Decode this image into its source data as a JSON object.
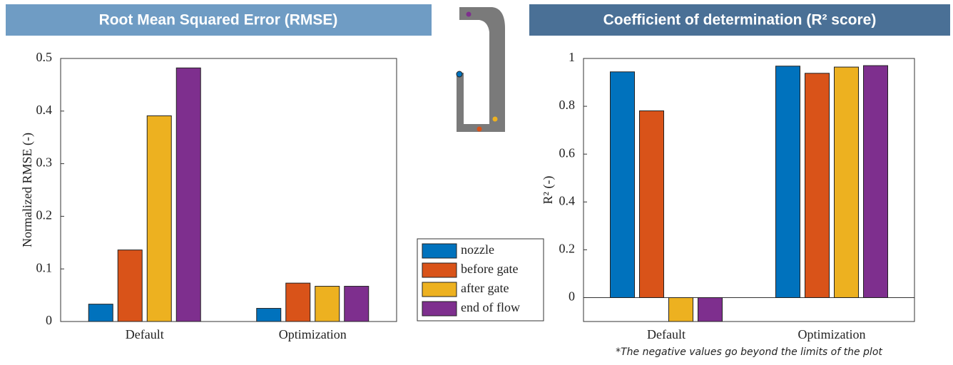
{
  "chart_data": [
    {
      "type": "bar",
      "title": "Root Mean Squared Error (RMSE)",
      "ylabel": "Normalized RMSE (-)",
      "categories": [
        "Default",
        "Optimization"
      ],
      "series": [
        {
          "name": "nozzle",
          "color": "#0072bd",
          "values": [
            0.033,
            0.025
          ]
        },
        {
          "name": "before gate",
          "color": "#d95319",
          "values": [
            0.136,
            0.073
          ]
        },
        {
          "name": "after gate",
          "color": "#edb120",
          "values": [
            0.391,
            0.067
          ]
        },
        {
          "name": "end of flow",
          "color": "#7e2f8e",
          "values": [
            0.482,
            0.067
          ]
        }
      ],
      "ylim": [
        0,
        0.5
      ],
      "yticks": [
        0,
        0.1,
        0.2,
        0.3,
        0.4,
        0.5
      ]
    },
    {
      "type": "bar",
      "title": "Coefficient of determination (R² score)",
      "ylabel": "R² (-)",
      "note": "*The negative values go beyond the limits of the plot",
      "categories": [
        "Default",
        "Optimization"
      ],
      "series": [
        {
          "color": "#0072bd",
          "values": [
            0.944,
            0.968
          ]
        },
        {
          "color": "#d95319",
          "values": [
            0.781,
            0.938
          ]
        },
        {
          "color": "#edb120",
          "values": [
            -0.1,
            0.964
          ]
        },
        {
          "color": "#7e2f8e",
          "values": [
            -0.1,
            0.97
          ]
        }
      ],
      "ylim": [
        -0.1,
        1
      ],
      "yticks": [
        0,
        0.2,
        0.4,
        0.6,
        0.8,
        1
      ]
    }
  ]
}
